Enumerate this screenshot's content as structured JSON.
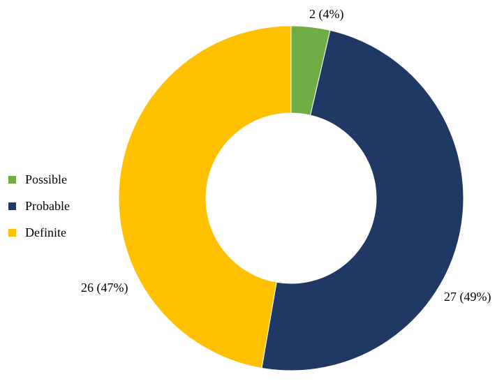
{
  "chart_data": {
    "type": "pie",
    "variant": "donut",
    "categories": [
      "Possible",
      "Probable",
      "Definite"
    ],
    "values": [
      2,
      27,
      26
    ],
    "percent_labels": [
      "4%",
      "49%",
      "47%"
    ],
    "data_labels": [
      "2 (4%)",
      "27 (49%)",
      "26 (47%)"
    ],
    "colors": [
      "#70ad47",
      "#203864",
      "#ffc000"
    ],
    "title": "",
    "legend_position": "left",
    "start_angle_deg": 0,
    "direction": "clockwise"
  }
}
